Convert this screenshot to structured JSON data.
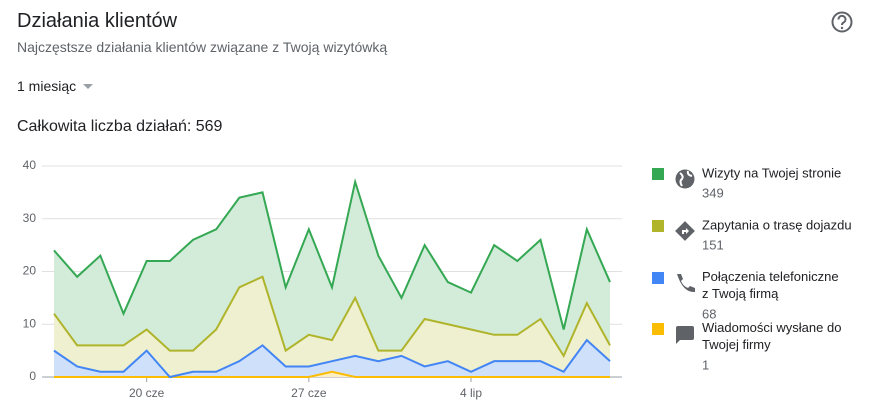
{
  "header": {
    "title": "Działania klientów",
    "subtitle": "Najczęstsze działania klientów związane z Twoją wizytówką",
    "period": "1 miesiąc",
    "total": "Całkowita liczba działań: 569"
  },
  "chart_data": {
    "type": "stacked_area",
    "categories": [
      null,
      null,
      null,
      null,
      "20 cze",
      null,
      null,
      null,
      null,
      null,
      null,
      "27 cze",
      null,
      null,
      null,
      null,
      null,
      null,
      "4 lip",
      null,
      null,
      null,
      null,
      null,
      null
    ],
    "ylim": [
      0,
      40
    ],
    "yticks": [
      0,
      10,
      20,
      30,
      40
    ],
    "grid": true,
    "series": [
      {
        "name": "Wiadomości wysłane do Twojej firmy",
        "total": 1,
        "color": "#fbbc04",
        "fill": "#fdefc3",
        "values": [
          0,
          0,
          0,
          0,
          0,
          0,
          0,
          0,
          0,
          0,
          0,
          0,
          1,
          0,
          0,
          0,
          0,
          0,
          0,
          0,
          0,
          0,
          0,
          0,
          0
        ]
      },
      {
        "name": "Połączenia telefoniczne z Twoją firmą",
        "total": 68,
        "color": "#4285f4",
        "fill": "#cfe0fb",
        "values": [
          5,
          2,
          1,
          1,
          5,
          0,
          1,
          1,
          3,
          6,
          2,
          2,
          2,
          4,
          3,
          4,
          2,
          3,
          1,
          3,
          3,
          3,
          1,
          7,
          3
        ]
      },
      {
        "name": "Zapytania o trasę dojazdu",
        "total": 151,
        "color": "#afb42b",
        "fill": "#eff0cf",
        "values": [
          7,
          4,
          5,
          5,
          4,
          5,
          4,
          8,
          14,
          13,
          3,
          6,
          4,
          11,
          2,
          1,
          9,
          7,
          8,
          5,
          5,
          8,
          3,
          7,
          3
        ]
      },
      {
        "name": "Wizyty na Twojej stronie",
        "total": 349,
        "color": "#34a853",
        "fill": "#d3ebd9",
        "values": [
          12,
          13,
          17,
          6,
          13,
          17,
          21,
          19,
          17,
          16,
          12,
          20,
          10,
          22,
          18,
          10,
          14,
          8,
          7,
          17,
          14,
          15,
          5,
          14,
          12
        ]
      }
    ]
  }
}
